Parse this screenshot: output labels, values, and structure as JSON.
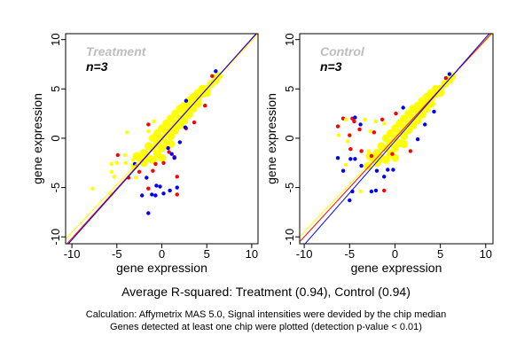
{
  "summary": "Average R-squared: Treatment (0.94), Control (0.94)",
  "caption": [
    "Calculation: Affymetrix MAS 5.0, Signal intensities were devided by the chip median",
    "Genes detected at least one chip were plotted (detection p-value < 0.01)"
  ],
  "colors": {
    "blue": "#0000ff",
    "red": "#ff0000",
    "yellow": "#ffff00",
    "label_gray": "#bebebe"
  },
  "chart_data": [
    {
      "type": "scatter",
      "title": "Treatment",
      "subtitle": "n=3",
      "xlabel": "gene expression",
      "ylabel": "gene expression",
      "xlim": [
        -10.7,
        10.7
      ],
      "ylim": [
        -10.7,
        10.6
      ],
      "xticks": [
        "-10",
        "-5",
        "0",
        "5",
        "10"
      ],
      "yticks": [
        "-10",
        "-5",
        "0",
        "5",
        "10"
      ],
      "grid": false,
      "lines": [
        {
          "color": "yellow",
          "slope": 0.97,
          "intercept": 0.15
        },
        {
          "color": "red",
          "slope": 1.01,
          "intercept": -0.05
        },
        {
          "color": "blue",
          "slope": 1.02,
          "intercept": -0.1
        }
      ],
      "series": [
        {
          "color": "blue",
          "points": [
            [
              -2.2,
              -5.8
            ],
            [
              -1.5,
              -7.6
            ],
            [
              -1.1,
              -5.7
            ],
            [
              -0.7,
              -5.8
            ],
            [
              -0.6,
              -4.8
            ],
            [
              -0.2,
              -4.9
            ],
            [
              0.2,
              -5.6
            ],
            [
              0.9,
              -5.3
            ],
            [
              1.7,
              -5.0
            ],
            [
              -1.7,
              -4.0
            ],
            [
              1.1,
              -1.6
            ],
            [
              1.4,
              -2.0
            ],
            [
              2.0,
              -0.4
            ],
            [
              -3.0,
              -2.6
            ],
            [
              2.7,
              3.8
            ],
            [
              0.7,
              -1.0
            ],
            [
              6.0,
              6.8
            ],
            [
              2.6,
              1.1
            ]
          ]
        },
        {
          "color": "red",
          "points": [
            [
              -4.9,
              -1.7
            ],
            [
              -3.7,
              -4.0
            ],
            [
              -1.5,
              -5.1
            ],
            [
              1.7,
              -3.9
            ],
            [
              1.7,
              -5.7
            ],
            [
              -1.0,
              -3.3
            ],
            [
              -0.7,
              -2.6
            ],
            [
              -2.5,
              -3.4
            ],
            [
              0.2,
              -2.5
            ],
            [
              1.4,
              -1.9
            ],
            [
              2.7,
              1.0
            ],
            [
              3.6,
              1.6
            ],
            [
              4.8,
              3.3
            ],
            [
              -1.5,
              1.4
            ],
            [
              5.6,
              6.3
            ],
            [
              0.8,
              -1.4
            ]
          ]
        },
        {
          "color": "yellow",
          "points": [
            [
              -7.7,
              -5.1
            ],
            [
              -5.6,
              -2.6
            ],
            [
              -5.6,
              -3.4
            ],
            [
              -5.0,
              -2.5
            ],
            [
              -5.3,
              -3.9
            ],
            [
              -4.1,
              -1.7
            ],
            [
              -4.0,
              -2.5
            ],
            [
              -3.9,
              0.6
            ],
            [
              -5.6,
              -5.7
            ],
            [
              -2.9,
              -4.0
            ],
            [
              -3.2,
              -2.2
            ],
            [
              -1.5,
              0.7
            ],
            [
              -0.9,
              1.7
            ]
          ]
        },
        {
          "color": "yellow",
          "points": [
            [
              -2.5,
              -2
            ],
            [
              -2,
              -1.5
            ],
            [
              -2,
              -2.5
            ],
            [
              -1.5,
              -0.8
            ],
            [
              -1.5,
              -2
            ],
            [
              -1,
              -1
            ],
            [
              -1,
              0
            ],
            [
              -1,
              -2.2
            ],
            [
              -0.5,
              -0.5
            ],
            [
              -0.5,
              0.5
            ],
            [
              -0.5,
              -1.6
            ],
            [
              0,
              0
            ],
            [
              0,
              1
            ],
            [
              0,
              -1
            ],
            [
              0.5,
              0.5
            ],
            [
              0.5,
              1.5
            ],
            [
              0.5,
              -0.5
            ],
            [
              1,
              1
            ],
            [
              1,
              2
            ],
            [
              1,
              0.2
            ],
            [
              1.5,
              1.5
            ],
            [
              1.5,
              2.5
            ],
            [
              1.5,
              0.8
            ],
            [
              2,
              2
            ],
            [
              2,
              3
            ],
            [
              2,
              1.3
            ],
            [
              2.5,
              2.5
            ],
            [
              2.5,
              3.3
            ],
            [
              2.5,
              1.8
            ],
            [
              3,
              3
            ],
            [
              3,
              3.8
            ],
            [
              3,
              2.4
            ],
            [
              3.5,
              3.5
            ],
            [
              3.5,
              4.2
            ],
            [
              3.5,
              3
            ],
            [
              4,
              4
            ],
            [
              4,
              4.6
            ],
            [
              4,
              3.5
            ],
            [
              4.5,
              4.5
            ],
            [
              4.5,
              5
            ],
            [
              5,
              5
            ],
            [
              5,
              4.6
            ],
            [
              5.5,
              5.5
            ],
            [
              6,
              5.9
            ],
            [
              6.3,
              6.3
            ],
            [
              -3,
              -2.8
            ],
            [
              -2.8,
              -1.8
            ],
            [
              0,
              -2
            ],
            [
              1,
              -0.6
            ]
          ]
        }
      ]
    },
    {
      "type": "scatter",
      "title": "Control",
      "subtitle": "n=3",
      "xlabel": "gene expression",
      "ylabel": "gene expression",
      "xlim": [
        -10.5,
        10.8
      ],
      "ylim": [
        -10.7,
        10.6
      ],
      "xticks": [
        "-10",
        "-5",
        "0",
        "5",
        "10"
      ],
      "yticks": [
        "-10",
        "-5",
        "0",
        "5",
        "10"
      ],
      "grid": false,
      "lines": [
        {
          "color": "yellow",
          "slope": 0.97,
          "intercept": 0.2
        },
        {
          "color": "red",
          "slope": 1.0,
          "intercept": 0.0
        },
        {
          "color": "blue",
          "slope": 1.05,
          "intercept": -0.3
        }
      ],
      "series": [
        {
          "color": "blue",
          "points": [
            [
              -5.0,
              -6.3
            ],
            [
              -4.7,
              -5.4
            ],
            [
              -2.6,
              -5.4
            ],
            [
              -2.1,
              -5.3
            ],
            [
              -1.2,
              -3.9
            ],
            [
              -6.3,
              -2.0
            ],
            [
              -5.7,
              -3.3
            ],
            [
              -4.9,
              -2.1
            ],
            [
              -4.4,
              -2.1
            ],
            [
              -4.4,
              2.1
            ],
            [
              -3.8,
              1.4
            ],
            [
              -3.7,
              -2.8
            ],
            [
              -2.0,
              -3.3
            ],
            [
              -0.8,
              -3.2
            ],
            [
              -0.2,
              -3.2
            ],
            [
              0.9,
              3.1
            ],
            [
              2.5,
              -0.1
            ],
            [
              4.3,
              2.7
            ],
            [
              6.0,
              6.5
            ],
            [
              3.3,
              1.4
            ]
          ]
        },
        {
          "color": "red",
          "points": [
            [
              -6.3,
              1.2
            ],
            [
              -5.7,
              2.0
            ],
            [
              -4.7,
              2.0
            ],
            [
              -4.5,
              1.7
            ],
            [
              -5.0,
              0.3
            ],
            [
              -4.9,
              -1.1
            ],
            [
              -3.9,
              0.9
            ],
            [
              -3.7,
              -1.3
            ],
            [
              -1.2,
              -5.3
            ],
            [
              -2.3,
              0.6
            ],
            [
              -1.4,
              1.9
            ],
            [
              0.1,
              2.5
            ],
            [
              1.7,
              -1.3
            ],
            [
              -0.3,
              -1.6
            ],
            [
              -2.6,
              -1.8
            ],
            [
              5.6,
              6.1
            ]
          ]
        },
        {
          "color": "yellow",
          "points": [
            [
              -6.2,
              0.3
            ],
            [
              -5.4,
              1.9
            ],
            [
              -5.2,
              -0.3
            ],
            [
              -5.4,
              -2.7
            ],
            [
              -3.8,
              -5.4
            ],
            [
              -3.3,
              1.9
            ],
            [
              -2.7,
              0.7
            ],
            [
              -2.1,
              1.7
            ],
            [
              -2.9,
              -1.3
            ],
            [
              -1.2,
              1.5
            ]
          ]
        },
        {
          "color": "yellow",
          "points": [
            [
              -2.5,
              -2
            ],
            [
              -2,
              -1.5
            ],
            [
              -2,
              -2.5
            ],
            [
              -1.5,
              -0.8
            ],
            [
              -1.5,
              -2
            ],
            [
              -1,
              -1
            ],
            [
              -1,
              0
            ],
            [
              -1,
              -2.2
            ],
            [
              -0.5,
              -0.5
            ],
            [
              -0.5,
              0.5
            ],
            [
              -0.5,
              -1.6
            ],
            [
              0,
              0
            ],
            [
              0,
              1
            ],
            [
              0,
              -1
            ],
            [
              0.5,
              0.5
            ],
            [
              0.5,
              1.5
            ],
            [
              0.5,
              -0.5
            ],
            [
              1,
              1
            ],
            [
              1,
              2
            ],
            [
              1,
              0.2
            ],
            [
              1.5,
              1.5
            ],
            [
              1.5,
              2.5
            ],
            [
              1.5,
              0.8
            ],
            [
              2,
              2
            ],
            [
              2,
              3
            ],
            [
              2,
              1.3
            ],
            [
              2.5,
              2.5
            ],
            [
              2.5,
              3.3
            ],
            [
              2.5,
              1.8
            ],
            [
              3,
              3
            ],
            [
              3,
              3.8
            ],
            [
              3,
              2.4
            ],
            [
              3.5,
              3.5
            ],
            [
              3.5,
              4.2
            ],
            [
              3.5,
              3
            ],
            [
              4,
              4
            ],
            [
              4,
              4.6
            ],
            [
              4,
              3.5
            ],
            [
              4.5,
              4.5
            ],
            [
              4.5,
              5
            ],
            [
              5,
              5
            ],
            [
              5,
              4.6
            ],
            [
              5.5,
              5.5
            ],
            [
              6,
              5.9
            ],
            [
              6.3,
              6.3
            ],
            [
              -3,
              -2.8
            ],
            [
              -2.8,
              -1.8
            ],
            [
              0,
              -2
            ],
            [
              1,
              -0.6
            ]
          ]
        }
      ]
    }
  ]
}
